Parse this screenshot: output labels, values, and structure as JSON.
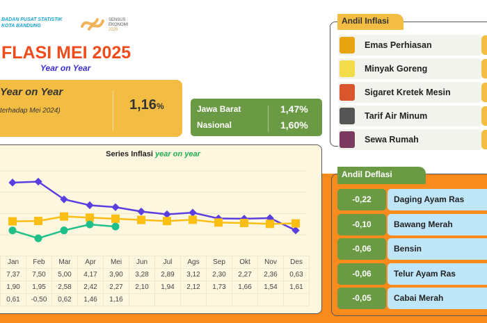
{
  "header": {
    "org_line1": "BADAN PUSAT STATISTIK",
    "org_line2": "KOTA BANDUNG",
    "logo_text": "SENSUS EKONOMI 2026",
    "title": "FLASI MEI 2025",
    "subtitle": "Year on Year"
  },
  "yoy_card": {
    "label": "Year on Year",
    "sub": "terhadap Mei 2024)",
    "value": "1,16",
    "unit": "%"
  },
  "regional": [
    {
      "name": "Jawa Barat",
      "value": "1,47%"
    },
    {
      "name": "Nasional",
      "value": "1,60%"
    }
  ],
  "chart_data": {
    "type": "line",
    "title": "Series Inflasi",
    "title_italic": "year on year",
    "categories": [
      "Jan",
      "Feb",
      "Mar",
      "Apr",
      "Mei",
      "Jun",
      "Jul",
      "Ags",
      "Sep",
      "Okt",
      "Nov",
      "Des"
    ],
    "ylim": [
      -1.5,
      9.5
    ],
    "grid": true,
    "series": [
      {
        "color": "#5b3ee0",
        "marker": "diamond",
        "values": [
          7.37,
          7.5,
          5.0,
          4.17,
          3.9,
          3.28,
          2.89,
          3.12,
          2.3,
          2.27,
          2.36,
          0.63
        ],
        "labels": [
          "7,37",
          "7,50",
          "5,00",
          "4,17",
          "3,90",
          "3,28",
          "2,89",
          "3,12",
          "2,30",
          "2,27",
          "2,36",
          "0,63"
        ]
      },
      {
        "color": "#fbbf14",
        "marker": "square",
        "values": [
          1.9,
          1.95,
          2.58,
          2.42,
          2.27,
          2.1,
          1.94,
          2.12,
          1.73,
          1.66,
          1.54,
          1.61
        ],
        "labels": [
          "1,90",
          "1,95",
          "2,58",
          "2,42",
          "2,27",
          "2,10",
          "1,94",
          "2,12",
          "1,73",
          "1,66",
          "1,54",
          "1,61"
        ]
      },
      {
        "color": "#1fbf8a",
        "marker": "circle",
        "values": [
          0.61,
          -0.5,
          0.62,
          1.46,
          1.16,
          null,
          null,
          null,
          null,
          null,
          null,
          null
        ],
        "labels": [
          "0,61",
          "-0,50",
          "0,62",
          "1,46",
          "1,16",
          "",
          "",
          "",
          "",
          "",
          "",
          ""
        ]
      }
    ]
  },
  "andil_inflasi": {
    "title": "Andil Inflasi",
    "items": [
      {
        "name": "Emas Perhiasan",
        "icon": "gold-jewelry-icon",
        "color": "#e8a512"
      },
      {
        "name": "Minyak Goreng",
        "icon": "cooking-oil-icon",
        "color": "#f3dc4a"
      },
      {
        "name": "Sigaret Kretek Mesin",
        "icon": "cigarette-pack-icon",
        "color": "#d9552c"
      },
      {
        "name": "Tarif Air Minum",
        "icon": "water-tap-icon",
        "color": "#555555"
      },
      {
        "name": "Sewa Rumah",
        "icon": "house-icon",
        "color": "#7a3b5e"
      }
    ]
  },
  "andil_deflasi": {
    "title": "Andil Deflasi",
    "items": [
      {
        "value": "-0,22",
        "name": "Daging Ayam Ras"
      },
      {
        "value": "-0,10",
        "name": "Bawang Merah"
      },
      {
        "value": "-0,06",
        "name": "Bensin"
      },
      {
        "value": "-0,06",
        "name": "Telur Ayam Ras"
      },
      {
        "value": "-0,05",
        "name": "Cabai Merah"
      }
    ]
  }
}
